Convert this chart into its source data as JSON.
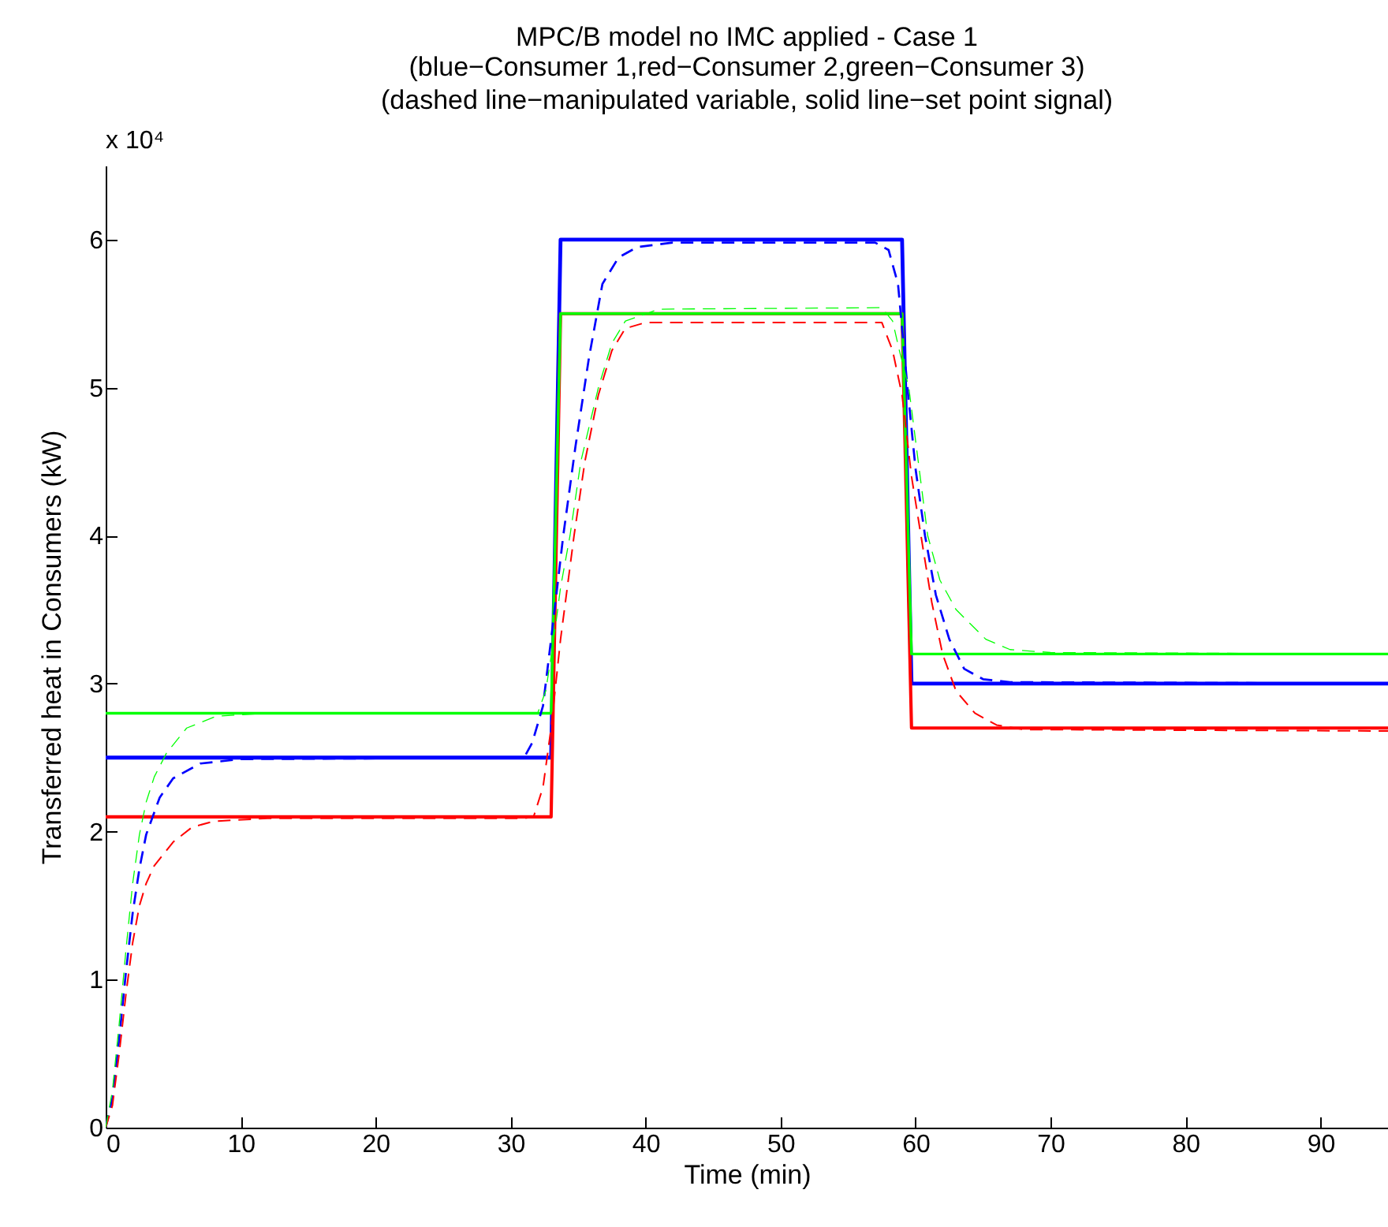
{
  "chart_data": {
    "type": "line",
    "title": "MPC/B model no IMC applied - Case 1",
    "subtitle": "(blue−Consumer 1,red−Consumer 2,green−Consumer 3)\n(dashed line−manipulated variable, solid line−set point signal)",
    "xlabel": "Time (min)",
    "ylabel": "Transferred heat in Consumers (kW)",
    "annotations": [
      "x 10⁴"
    ],
    "xlim": [
      0,
      95
    ],
    "ylim": [
      0,
      6.5
    ],
    "xticks": [
      0,
      10,
      20,
      30,
      40,
      50,
      60,
      70,
      80,
      90
    ],
    "yticks": [
      0,
      1,
      2,
      3,
      4,
      5,
      6
    ],
    "grid": false,
    "marker": "none",
    "series": [
      {
        "color": "#0000ff",
        "line_style": "solid",
        "x": [
          0,
          33,
          33.7,
          59,
          59.7,
          95
        ],
        "values": [
          2.5,
          2.5,
          6,
          6,
          3,
          3
        ]
      },
      {
        "color": "#ff0000",
        "line_style": "solid",
        "x": [
          0,
          33,
          33.7,
          59,
          59.7,
          95
        ],
        "values": [
          2.1,
          2.1,
          5.5,
          5.5,
          2.7,
          2.7
        ]
      },
      {
        "color": "#00ff00",
        "line_style": "solid",
        "x": [
          0,
          33,
          33.7,
          59,
          59.7,
          95
        ],
        "values": [
          2.8,
          2.8,
          5.5,
          5.5,
          3.2,
          3.2
        ]
      },
      {
        "color": "#0000ff",
        "line_style": "dashed",
        "x": [
          0,
          0.5,
          1,
          1.5,
          2,
          2.5,
          3,
          4,
          5,
          7,
          10,
          31,
          31.6,
          32.4,
          33,
          33.9,
          34.8,
          35.8,
          36.8,
          38,
          39.4,
          42,
          57,
          58,
          58.7,
          59.4,
          60,
          60.7,
          61.5,
          62.5,
          63.6,
          65,
          67,
          95
        ],
        "values": [
          0,
          0.2,
          0.6,
          1.05,
          1.45,
          1.75,
          1.98,
          2.23,
          2.36,
          2.46,
          2.49,
          2.5,
          2.6,
          2.85,
          3.3,
          4,
          4.6,
          5.2,
          5.7,
          5.88,
          5.95,
          5.98,
          5.98,
          5.93,
          5.7,
          5,
          4.45,
          4,
          3.6,
          3.3,
          3.1,
          3.03,
          3.01,
          3
        ]
      },
      {
        "color": "#ff0000",
        "line_style": "dashed",
        "x": [
          0,
          0.5,
          1,
          1.5,
          2,
          2.5,
          3,
          3.6,
          5,
          6.4,
          8,
          12,
          31,
          31.7,
          32.4,
          33,
          33.7,
          34.7,
          35.5,
          36.5,
          37.5,
          38.5,
          40,
          57.5,
          58.3,
          59,
          59.7,
          60.4,
          61.2,
          62,
          63,
          64.4,
          66,
          68,
          95
        ],
        "values": [
          0,
          0.15,
          0.5,
          0.9,
          1.25,
          1.5,
          1.65,
          1.77,
          1.93,
          2.03,
          2.07,
          2.09,
          2.09,
          2.1,
          2.3,
          2.7,
          3.3,
          4,
          4.5,
          4.95,
          5.25,
          5.4,
          5.44,
          5.44,
          5.25,
          4.95,
          4.4,
          4,
          3.55,
          3.2,
          2.95,
          2.8,
          2.72,
          2.69,
          2.68
        ]
      },
      {
        "color": "#00ff00",
        "line_style": "dashed",
        "x": [
          0,
          0.5,
          1,
          1.5,
          2,
          2.5,
          3,
          3.6,
          4.5,
          6,
          8.2,
          12,
          32,
          32.6,
          33.2,
          33.7,
          34.4,
          35.2,
          36.5,
          37.5,
          38.5,
          41,
          57.5,
          58.3,
          58.8,
          59.5,
          60.2,
          60.9,
          61.8,
          63,
          65.2,
          67,
          70,
          95
        ],
        "values": [
          0,
          0.25,
          0.7,
          1.2,
          1.65,
          1.98,
          2.2,
          2.37,
          2.53,
          2.7,
          2.78,
          2.8,
          2.8,
          2.95,
          3.3,
          3.65,
          4,
          4.5,
          5,
          5.3,
          5.45,
          5.53,
          5.54,
          5.45,
          5.25,
          5,
          4.5,
          4,
          3.7,
          3.5,
          3.3,
          3.23,
          3.21,
          3.2
        ]
      }
    ]
  }
}
